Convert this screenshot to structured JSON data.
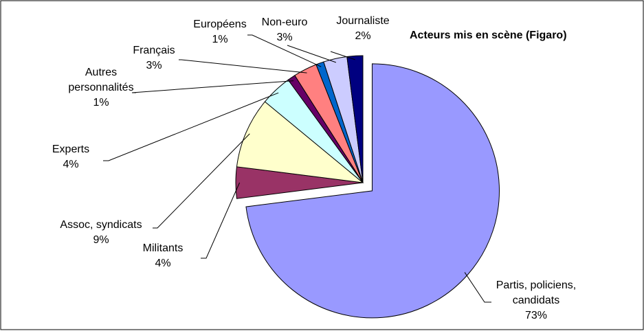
{
  "chart_data": {
    "type": "pie",
    "title": "Acteurs mis en scène (Figaro)",
    "slices": [
      {
        "label": [
          "Partis, policiens,",
          "candidats"
        ],
        "percent_label": "73%",
        "value": 73,
        "color": "#9999FF",
        "exploded": true
      },
      {
        "label": [
          "Militants"
        ],
        "percent_label": "4%",
        "value": 4,
        "color": "#993366",
        "exploded": false
      },
      {
        "label": [
          "Assoc, syndicats"
        ],
        "percent_label": "9%",
        "value": 9,
        "color": "#FFFFCC",
        "exploded": false
      },
      {
        "label": [
          "Experts"
        ],
        "percent_label": "4%",
        "value": 4,
        "color": "#CCFFFF",
        "exploded": false
      },
      {
        "label": [
          "Autres",
          "personnalités"
        ],
        "percent_label": "1%",
        "value": 1,
        "color": "#660066",
        "exploded": false
      },
      {
        "label": [
          "Français"
        ],
        "percent_label": "3%",
        "value": 3,
        "color": "#FF8080",
        "exploded": false
      },
      {
        "label": [
          "Européens"
        ],
        "percent_label": "1%",
        "value": 1,
        "color": "#0066CC",
        "exploded": false
      },
      {
        "label": [
          "Non-euro"
        ],
        "percent_label": "3%",
        "value": 3,
        "color": "#CCCCFF",
        "exploded": false
      },
      {
        "label": [
          "Journaliste"
        ],
        "percent_label": "2%",
        "value": 2,
        "color": "#000080",
        "exploded": false
      }
    ]
  }
}
